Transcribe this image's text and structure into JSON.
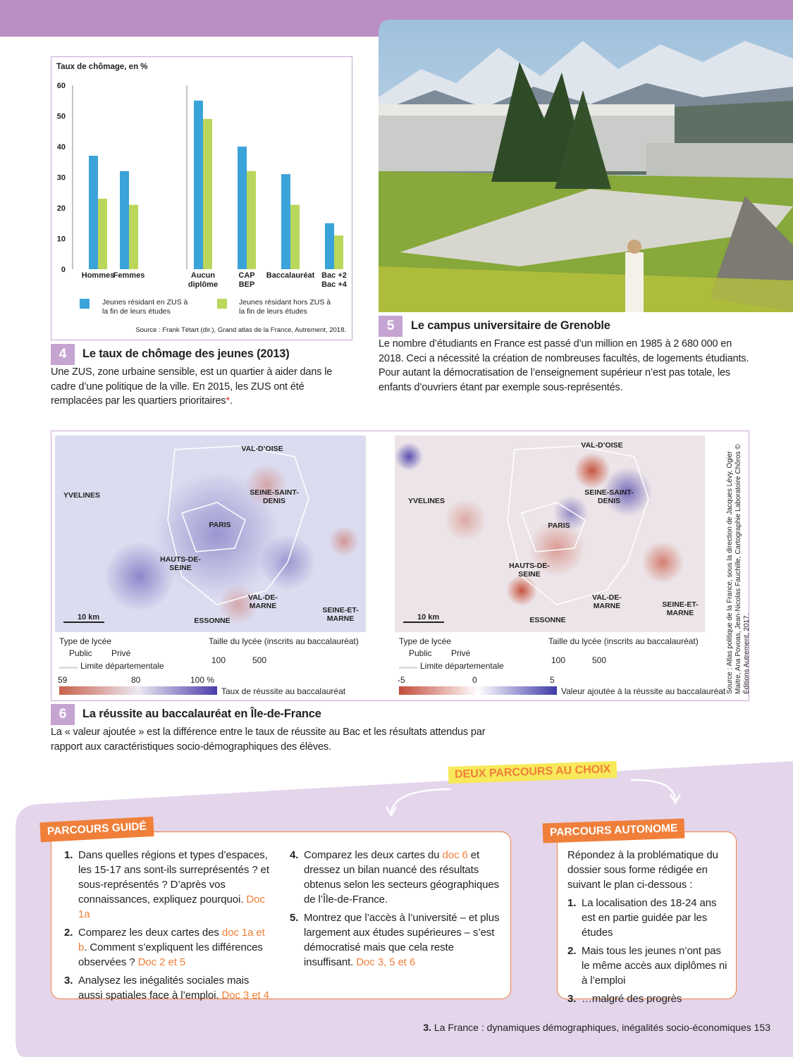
{
  "chart_data": {
    "type": "bar",
    "title": "Taux de chômage, en %",
    "categories": [
      "Hommes",
      "Femmes",
      "Aucun diplôme",
      "CAP BEP",
      "Baccalauréat",
      "Bac +2 Bac +4"
    ],
    "series": [
      {
        "name": "Jeunes résidant en ZUS à la fin de leurs études",
        "color": "#3aa3d9",
        "values": [
          37,
          32,
          55,
          40,
          31,
          15
        ]
      },
      {
        "name": "Jeunes résidant hors ZUS à la fin de leurs études",
        "color": "#b9d75a",
        "values": [
          23,
          21,
          49,
          32,
          21,
          11
        ]
      }
    ],
    "ylim": [
      0,
      60
    ],
    "yticks": [
      0,
      10,
      20,
      30,
      40,
      50,
      60
    ],
    "source": "Source : Frank Tétart (dir.), Grand atlas de la France, Autrement, 2018."
  },
  "doc4": {
    "number": "4",
    "title": "Le taux de chômage des jeunes (2013)",
    "caption": "Une ZUS, zone urbaine sensible, est un quartier à aider dans le cadre d’une politique de la ville. En 2015, les ZUS ont été remplacées par les quartiers prioritaires",
    "caption_mark": "*",
    "caption_end": "."
  },
  "doc5": {
    "number": "5",
    "title": "Le campus universitaire de Grenoble",
    "caption": "Le nombre d’étudiants en France est passé d’un million en 1985 à 2 680 000 en 2018. Ceci a nécessité la création de nombreuses facultés, de logements étudiants. Pour autant la démocratisation de l’enseignement supérieur n’est pas totale, les enfants d’ouvriers étant par exemple sous-représentés."
  },
  "doc6": {
    "number": "6",
    "title": "La réussite au baccalauréat en Île-de-France",
    "caption": "La « valeur ajoutée » est la différence entre le taux de réussite au Bac et les résultats attendus par rapport aux caractéristiques socio-démographiques des élèves.",
    "source": "Source : Atlas politique de la France, sous la direction de Jacques Lévy, Ogier Maitre, Ana Povoas, Jean-Nicolas Fauchille, Cartographie Laboratoire Chôros © Éditions Autrement, 2017.",
    "maps": [
      {
        "labels": [
          "VAL-D’OISE",
          "YVELINES",
          "SEINE-SAINT-DENIS",
          "PARIS",
          "HAUTS-DE-SEINE",
          "VAL-DE-MARNE",
          "SEINE-ET-MARNE",
          "ESSONNE"
        ],
        "scale": "10 km",
        "type_title": "Type de lycée",
        "public": "Public",
        "private": "Privé",
        "limit": "Limite départementale",
        "size_title": "Taille du lycée (inscrits au baccalauréat)",
        "size_small": "100",
        "size_large": "500",
        "scale_min": "59",
        "scale_mid": "80",
        "scale_max": "100 %",
        "scale_title": "Taux de réussite au baccalauréat"
      },
      {
        "labels": [
          "VAL-D’OISE",
          "YVELINES",
          "SEINE-SAINT-DENIS",
          "PARIS",
          "HAUTS-DE-SEINE",
          "VAL-DE-MARNE",
          "SEINE-ET-MARNE",
          "ESSONNE"
        ],
        "scale": "10 km",
        "type_title": "Type de lycée",
        "public": "Public",
        "private": "Privé",
        "limit": "Limite départementale",
        "size_title": "Taille du lycée (inscrits au baccalauréat)",
        "size_small": "100",
        "size_large": "500",
        "scale_min": "-5",
        "scale_mid": "0",
        "scale_max": "5",
        "scale_title": "Valeur ajoutée à la réussite au baccalauréat"
      }
    ]
  },
  "activities": {
    "banner": "DEUX PARCOURS AU CHOIX",
    "guided": {
      "title": "PARCOURS GUIDÉ",
      "items": [
        {
          "num": "1.",
          "text": "Dans quelles régions et types d’espaces, les 15-17 ans sont-ils surreprésentés ? et sous-représentés ? D’après vos connaissances, expliquez pourquoi.",
          "ref": "Doc 1a"
        },
        {
          "num": "2.",
          "text": "Comparez les deux cartes des",
          "ref": "doc 1a et b",
          "text2": ". Comment s’expliquent les différences observées ?",
          "ref2": "Doc 2 et 5"
        },
        {
          "num": "3.",
          "text": "Analysez les inégalités sociales mais aussi spatiales face à l’emploi.",
          "ref": "Doc 3 et 4"
        },
        {
          "num": "4.",
          "text": "Comparez les deux cartes du",
          "ref": "doc 6",
          "text2": "et dressez un bilan nuancé des résultats obtenus selon les secteurs géographiques de l’Île-de-France."
        },
        {
          "num": "5.",
          "text": "Montrez que l’accès à l’université – et plus largement aux études supérieures – s’est démocratisé mais que cela reste insuffisant.",
          "ref": "Doc 3, 5 et 6"
        }
      ]
    },
    "autonomous": {
      "title": "PARCOURS AUTONOME",
      "intro": "Répondez à la problématique du dossier sous forme rédigée en suivant le plan ci-dessous :",
      "items": [
        {
          "num": "1.",
          "text": "La localisation des 18-24 ans est en partie guidée par les études"
        },
        {
          "num": "2.",
          "text": "Mais tous les jeunes n’ont pas le même accès aux diplômes ni à l’emploi"
        },
        {
          "num": "3.",
          "text": "…malgré des progrès"
        }
      ]
    }
  },
  "footer": {
    "chapter": "3.",
    "title": "La France : dynamiques démographiques, inégalités socio-économiques",
    "page": "153"
  }
}
